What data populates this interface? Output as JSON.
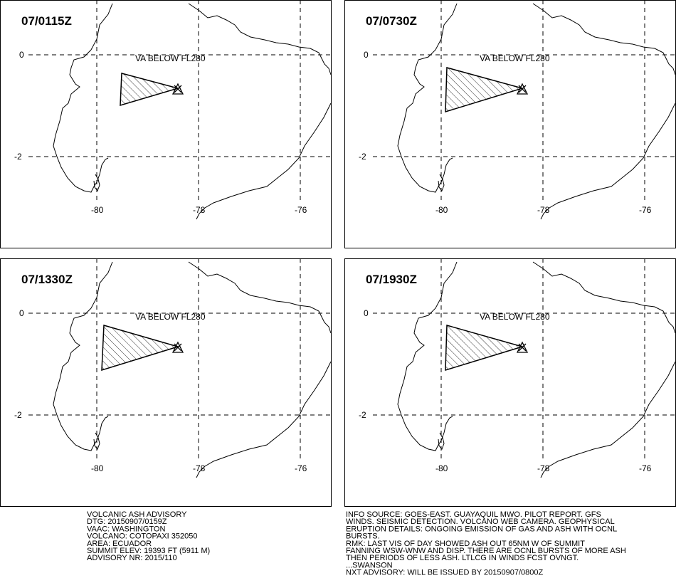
{
  "panels": [
    {
      "time": "07/0115Z",
      "annotation": "VA BELOW FL280"
    },
    {
      "time": "07/0730Z",
      "annotation": "VA BELOW FL280"
    },
    {
      "time": "07/1330Z",
      "annotation": "VA BELOW FL280"
    },
    {
      "time": "07/1930Z",
      "annotation": "VA BELOW FL280"
    }
  ],
  "grid": {
    "lat_labels": [
      "0",
      "-2"
    ],
    "lon_labels": [
      "-80",
      "-78",
      "-76"
    ]
  },
  "advisory_left": [
    "VOLCANIC ASH ADVISORY",
    "DTG: 20150907/0159Z",
    "VAAC: WASHINGTON",
    "VOLCANO: COTOPAXI 352050",
    "AREA: ECUADOR",
    "SUMMIT ELEV: 19393 FT (5911 M)",
    "ADVISORY NR: 2015/110"
  ],
  "advisory_right": [
    "INFO SOURCE: GOES-EAST. GUAYAQUIL MWO. PILOT REPORT. GFS",
    "WINDS. SEISMIC DETECTION. VOLCANO WEB CAMERA. GEOPHYSICAL",
    "ERUPTION DETAILS: ONGOING EMISSION OF GAS AND ASH WITH OCNL",
    "BURSTS.",
    "RMK: LAST VIS OF DAY SHOWED ASH OUT 65NM W OF SUMMIT",
    "FANNING WSW-WNW AND DISP. THERE ARE OCNL BURSTS OF MORE ASH",
    "THEN PERIODS OF LESS ASH. LTLCG IN WINDS FCST OVNGT.",
    "...SWANSON",
    "NXT ADVISORY: WILL BE ISSUED BY 20150907/0800Z"
  ]
}
